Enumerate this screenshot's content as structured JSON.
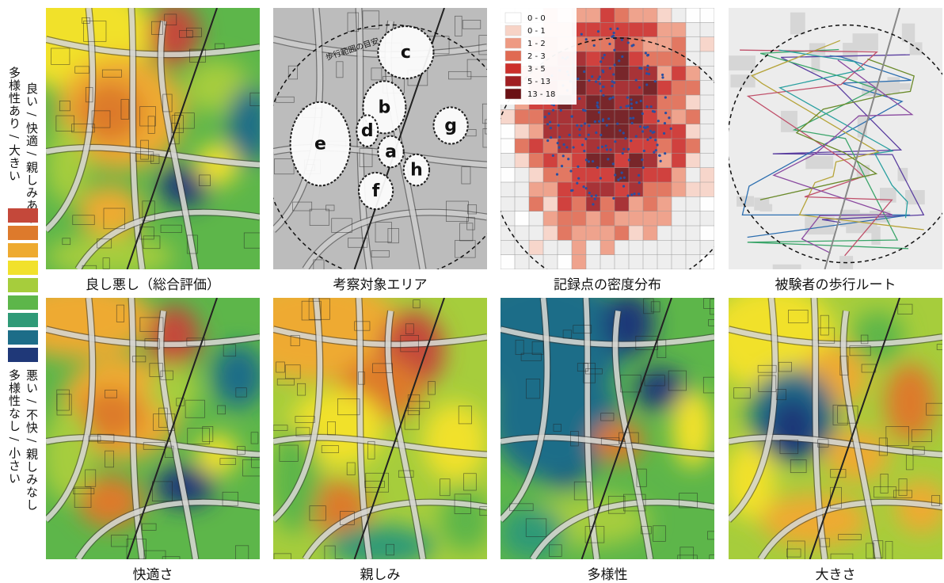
{
  "legend": {
    "top_label_1": "良い / 快適 / 親しみあり",
    "top_label_2": "多様性あり / 大きい",
    "bottom_label_1": "悪い / 不快 / 親しみなし",
    "bottom_label_2": "多様性なし / 小さい",
    "colors": [
      "#c4483a",
      "#dd7a2c",
      "#eeaa30",
      "#f1e12c",
      "#a6cd3c",
      "#5db64a",
      "#2f9a77",
      "#1d6d88",
      "#1f3878"
    ]
  },
  "panels": [
    {
      "caption": "良し悪し（総合評価）"
    },
    {
      "caption": "考察対象エリア"
    },
    {
      "caption": "記録点の密度分布"
    },
    {
      "caption": "被験者の歩行ルート"
    },
    {
      "caption": "快適さ"
    },
    {
      "caption": "親しみ"
    },
    {
      "caption": "多様性"
    },
    {
      "caption": "大きさ"
    }
  ],
  "area_map": {
    "labels": [
      "a",
      "b",
      "c",
      "d",
      "e",
      "f",
      "g",
      "h"
    ],
    "map_text": "歩行範囲の目安"
  },
  "density_legend": {
    "entries": [
      {
        "label": "0 - 0",
        "color": "#ffffff"
      },
      {
        "label": "0 - 1",
        "color": "#f7d3c6"
      },
      {
        "label": "1 - 2",
        "color": "#ee9a82"
      },
      {
        "label": "2 - 3",
        "color": "#e06a52"
      },
      {
        "label": "3 - 5",
        "color": "#cc2e2a"
      },
      {
        "label": "5 - 13",
        "color": "#a01e22"
      },
      {
        "label": "13 - 18",
        "color": "#6a1014"
      }
    ]
  }
}
